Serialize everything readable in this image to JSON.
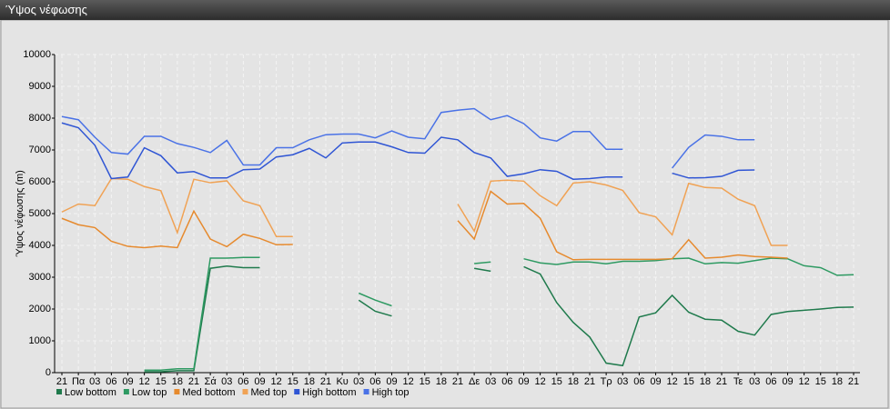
{
  "window_title": "Ύψος νέφωσης",
  "chart_data": {
    "type": "line",
    "y_label": "Ύψος νέφωσης (m)",
    "categories": [
      "21",
      "Πα",
      "03",
      "06",
      "09",
      "12",
      "15",
      "18",
      "21",
      "Σά",
      "03",
      "06",
      "09",
      "12",
      "15",
      "18",
      "21",
      "Κυ",
      "03",
      "06",
      "09",
      "12",
      "15",
      "18",
      "21",
      "Δε",
      "03",
      "06",
      "09",
      "12",
      "15",
      "18",
      "21",
      "Τρ",
      "03",
      "06",
      "09",
      "12",
      "15",
      "18",
      "21",
      "Τε",
      "03",
      "06",
      "09",
      "12",
      "15",
      "18",
      "21"
    ],
    "ylim": [
      0,
      10000
    ],
    "yticks": [
      0,
      1000,
      2000,
      3000,
      4000,
      5000,
      6000,
      7000,
      8000,
      9000,
      10000
    ],
    "grid": true,
    "legend": "bottom",
    "series": [
      {
        "name": "Low bottom",
        "color": "#1f7a4c",
        "values": [
          null,
          null,
          null,
          null,
          null,
          30,
          30,
          60,
          60,
          3280,
          3350,
          3300,
          3300,
          null,
          null,
          null,
          null,
          null,
          2280,
          1930,
          1780,
          null,
          null,
          null,
          null,
          3280,
          3190,
          null,
          3330,
          3100,
          2200,
          1580,
          1120,
          300,
          220,
          1750,
          1880,
          2430,
          1900,
          1680,
          1650,
          1300,
          1180,
          1830,
          1920,
          1960,
          2000,
          2050,
          2060
        ]
      },
      {
        "name": "Low top",
        "color": "#2e9a62",
        "values": [
          null,
          null,
          null,
          null,
          null,
          80,
          80,
          120,
          120,
          3600,
          3600,
          3620,
          3620,
          null,
          null,
          null,
          null,
          null,
          2500,
          2280,
          2100,
          null,
          null,
          null,
          null,
          3430,
          3480,
          null,
          3580,
          3450,
          3400,
          3480,
          3480,
          3420,
          3500,
          3500,
          3520,
          3580,
          3600,
          3420,
          3460,
          3440,
          3520,
          3600,
          3580,
          3360,
          3300,
          3060,
          3080
        ]
      },
      {
        "name": "Med bottom",
        "color": "#e68a2e",
        "values": [
          4850,
          4650,
          4560,
          4130,
          3970,
          3930,
          3980,
          3930,
          5080,
          4200,
          3960,
          4350,
          4220,
          4020,
          4030,
          null,
          null,
          null,
          null,
          null,
          null,
          null,
          null,
          null,
          4780,
          4200,
          5700,
          5300,
          5320,
          4850,
          3800,
          3550,
          3560,
          3560,
          3560,
          3560,
          3560,
          3580,
          4180,
          3600,
          3630,
          3700,
          3650,
          3630,
          3600,
          null,
          null,
          null,
          null
        ]
      },
      {
        "name": "Med top",
        "color": "#f0a254",
        "values": [
          5050,
          5300,
          5250,
          6100,
          6080,
          5850,
          5720,
          4400,
          6080,
          5970,
          6030,
          5400,
          5250,
          4280,
          4280,
          null,
          null,
          null,
          null,
          null,
          null,
          null,
          null,
          null,
          5300,
          4450,
          6020,
          6050,
          6020,
          5560,
          5250,
          5960,
          6000,
          5900,
          5730,
          5030,
          4900,
          4330,
          5950,
          5820,
          5800,
          5450,
          5250,
          4000,
          4000,
          null,
          null,
          null,
          null
        ]
      },
      {
        "name": "High bottom",
        "color": "#2f55d4",
        "values": [
          7850,
          7700,
          7150,
          6100,
          6150,
          7070,
          6820,
          6280,
          6320,
          6120,
          6120,
          6380,
          6400,
          6780,
          6850,
          7050,
          6750,
          7220,
          7250,
          7250,
          7100,
          6920,
          6900,
          7400,
          7320,
          6920,
          6750,
          6170,
          6250,
          6380,
          6330,
          6080,
          6100,
          6150,
          6150,
          null,
          null,
          6270,
          6120,
          6130,
          6170,
          6360,
          6370,
          null,
          null,
          null,
          null,
          null,
          null
        ]
      },
      {
        "name": "High top",
        "color": "#4a72e6",
        "values": [
          8050,
          7950,
          7400,
          6920,
          6870,
          7430,
          7430,
          7200,
          7080,
          6920,
          7300,
          6530,
          6530,
          7070,
          7070,
          7320,
          7480,
          7500,
          7500,
          7380,
          7600,
          7400,
          7350,
          8180,
          8250,
          8300,
          7950,
          8080,
          7830,
          7380,
          7280,
          7580,
          7580,
          7020,
          7020,
          null,
          null,
          6430,
          7080,
          7470,
          7430,
          7320,
          7320,
          null,
          null,
          null,
          null,
          null,
          null
        ]
      }
    ]
  }
}
